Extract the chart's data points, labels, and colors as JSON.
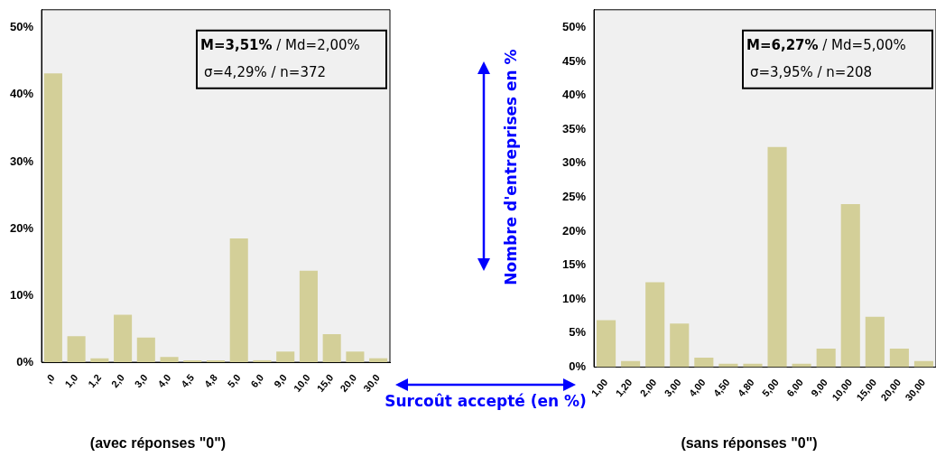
{
  "chart_data": [
    {
      "type": "bar",
      "title": "(avec réponses \"0\")",
      "categories": [
        ",0",
        "1,0",
        "1,2",
        "2,0",
        "3,0",
        "4,0",
        "4,5",
        "4,8",
        "5,0",
        "6,0",
        "9,0",
        "10,0",
        "15,0",
        "20,0",
        "30,0"
      ],
      "values": [
        43.2,
        3.9,
        0.6,
        7.1,
        3.7,
        0.8,
        0.3,
        0.3,
        18.5,
        0.3,
        1.6,
        13.7,
        4.2,
        1.6,
        0.6
      ],
      "color": "#d3cf98",
      "ylim": [
        0,
        52.7
      ],
      "yticks": [
        {
          "value": 0,
          "label": "0%"
        },
        {
          "value": 10,
          "label": "10%"
        },
        {
          "value": 20,
          "label": "20%"
        },
        {
          "value": 30,
          "label": "30%"
        },
        {
          "value": 40,
          "label": "40%"
        },
        {
          "value": 50,
          "label": "50%"
        }
      ],
      "annotations": [
        "M=3,51% / Md=2,00%",
        "σ=4,29% / n=372"
      ]
    },
    {
      "type": "bar",
      "title": "(sans réponses \"0\")",
      "ylabel": "Nombre d'entreprises en %",
      "xlabel": "Surcoût accepté (en %)",
      "categories": [
        "1,00",
        "1,20",
        "2,00",
        "3,00",
        "4,00",
        "4,50",
        "4,80",
        "5,00",
        "6,00",
        "9,00",
        "10,00",
        "15,00",
        "20,00",
        "30,00"
      ],
      "values": [
        6.9,
        0.9,
        12.5,
        6.4,
        1.4,
        0.5,
        0.5,
        32.4,
        0.5,
        2.7,
        24.0,
        7.4,
        2.7,
        0.9
      ],
      "color": "#d3cf98",
      "ylim": [
        0,
        52.6
      ],
      "yticks": [
        {
          "value": 0,
          "label": "0%"
        },
        {
          "value": 5,
          "label": "5%"
        },
        {
          "value": 10,
          "label": "10%"
        },
        {
          "value": 15,
          "label": "15%"
        },
        {
          "value": 20,
          "label": "20%"
        },
        {
          "value": 25,
          "label": "25%"
        },
        {
          "value": 30,
          "label": "30%"
        },
        {
          "value": 35,
          "label": "35%"
        },
        {
          "value": 40,
          "label": "40%"
        },
        {
          "value": 45,
          "label": "45%"
        },
        {
          "value": 50,
          "label": "50%"
        }
      ],
      "annotations": [
        "M=6,27% / Md=5,00%",
        "σ=3,95% / n=208"
      ]
    }
  ]
}
